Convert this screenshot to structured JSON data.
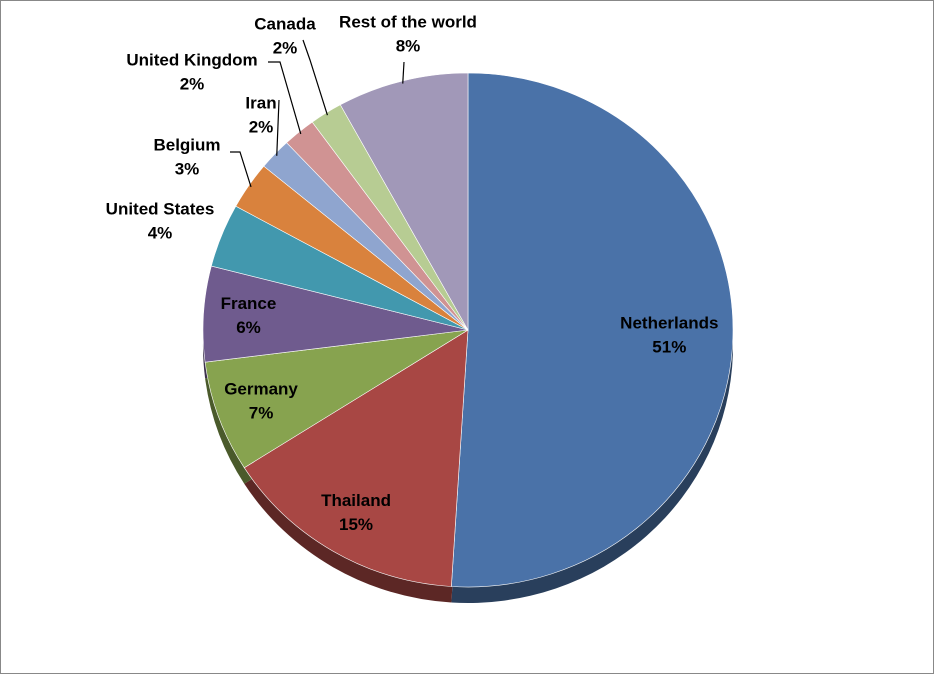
{
  "chart_data": {
    "type": "pie",
    "categories": [
      "Netherlands",
      "Thailand",
      "Germany",
      "France",
      "United States",
      "Belgium",
      "Iran",
      "United Kingdom",
      "Canada",
      "Rest of the world"
    ],
    "values": [
      51,
      15,
      7,
      6,
      4,
      3,
      2,
      2,
      2,
      8
    ],
    "value_labels": [
      "51%",
      "15%",
      "7%",
      "6%",
      "4%",
      "3%",
      "2%",
      "2%",
      "2%",
      "8%"
    ],
    "colors": [
      "#4a72a8",
      "#a84744",
      "#87a34f",
      "#6f5b8e",
      "#4298ae",
      "#d9823d",
      "#8fa5cf",
      "#d09393",
      "#b7cc93",
      "#a198b8"
    ]
  }
}
